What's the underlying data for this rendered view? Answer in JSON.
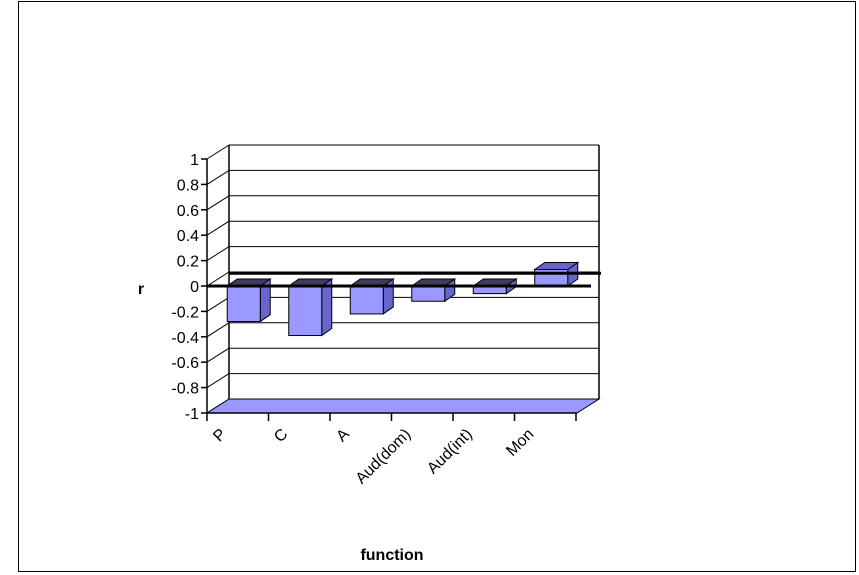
{
  "chart_data": {
    "type": "bar",
    "style": "3d-column",
    "categories": [
      "P",
      "C",
      "A",
      "Aud(dom)",
      "Aud(int)",
      "Mon"
    ],
    "series": [
      {
        "values": [
          -0.28,
          -0.39,
          -0.22,
          -0.12,
          -0.06,
          0.13
        ]
      }
    ],
    "reference_line": 0.1,
    "title": "",
    "xlabel": "function",
    "ylabel": "r",
    "ylim": [
      -1,
      1
    ],
    "y_ticks": [
      "1",
      "0.8",
      "0.6",
      "0.4",
      "0.2",
      "0",
      "-0.2",
      "-0.4",
      "-0.6",
      "-0.8",
      "-1"
    ],
    "grid": true,
    "legend": "none",
    "colors": {
      "bar_front": "#9999ff",
      "bar_side": "#6666cc",
      "bar_top": "#3d3d5c",
      "floor": "#9999ff"
    }
  }
}
